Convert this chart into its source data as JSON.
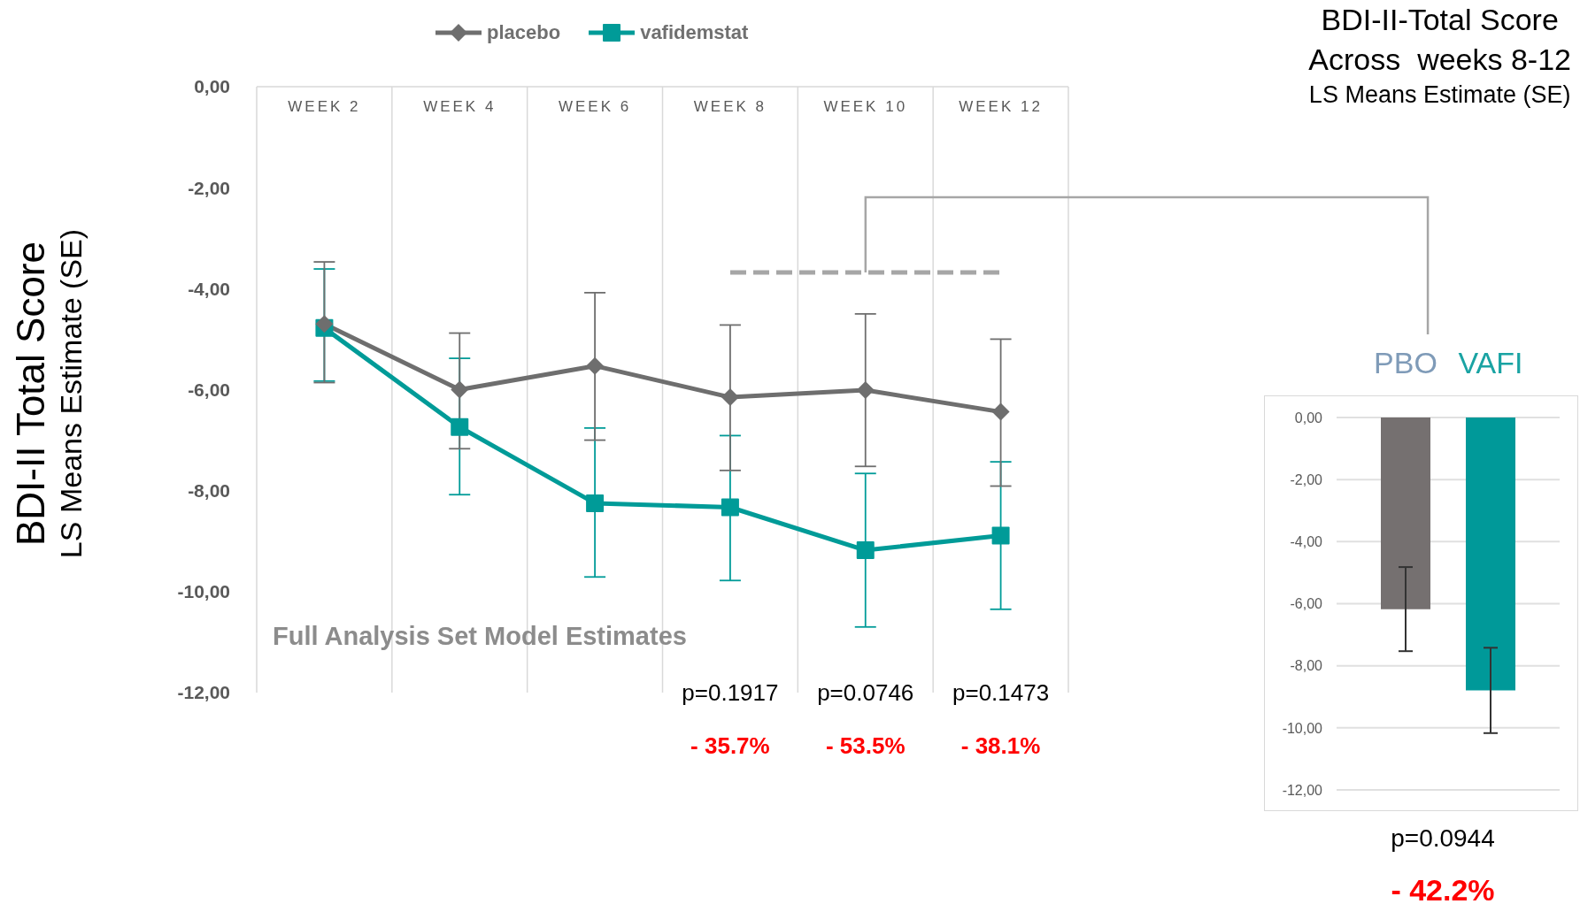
{
  "chart_data": [
    {
      "type": "line",
      "ylabel": "BDI-II Total Score\nLS Means Estimate (SE)",
      "categories": [
        "WEEK 2",
        "WEEK 4",
        "WEEK 6",
        "WEEK 8",
        "WEEK 10",
        "WEEK 12"
      ],
      "series": [
        {
          "name": "placebo",
          "color": "#6e6e6e",
          "marker": "diamond",
          "values": [
            -4.7,
            -6.0,
            -5.53,
            -6.15,
            -6.01,
            -6.44
          ],
          "errors": [
            [
              -5.86,
              -3.47
            ],
            [
              -7.17,
              -4.88
            ],
            [
              -7.0,
              -4.08
            ],
            [
              -7.6,
              -4.72
            ],
            [
              -7.52,
              -4.5
            ],
            [
              -7.91,
              -5.0
            ]
          ]
        },
        {
          "name": "vafidemstat",
          "color": "#009b98",
          "marker": "square",
          "values": [
            -4.78,
            -6.74,
            -8.25,
            -8.33,
            -9.18,
            -8.89
          ],
          "errors": [
            [
              -5.83,
              -3.61
            ],
            [
              -8.08,
              -5.38
            ],
            [
              -9.71,
              -6.76
            ],
            [
              -9.78,
              -6.91
            ],
            [
              -10.7,
              -7.66
            ],
            [
              -10.35,
              -7.43
            ]
          ]
        }
      ],
      "ylim": [
        -12,
        0
      ],
      "yticks": [
        {
          "value": 0,
          "label": "0,00"
        },
        {
          "value": -2,
          "label": "-2,00"
        },
        {
          "value": -4,
          "label": "-4,00"
        },
        {
          "value": -6,
          "label": "-6,00"
        },
        {
          "value": -8,
          "label": "-8,00"
        },
        {
          "value": -10,
          "label": "-10,00"
        },
        {
          "value": -12,
          "label": "-12,00"
        }
      ],
      "grid": "x",
      "legend": "top",
      "annotations": [
        "Full Analysis Set Model Estimates",
        "p=0.1917",
        "p=0.0746",
        "p=0.1473",
        "- 35.7%",
        "- 53.5%",
        "- 38.1%"
      ]
    },
    {
      "type": "bar",
      "title": "BDI-II-Total Score\nAcross  weeks 8-12",
      "subtitle": "LS Means Estimate (SE)",
      "categories": [
        "PBO",
        "VAFI"
      ],
      "values": [
        -6.18,
        -8.79
      ],
      "colors": [
        "#757070",
        "#009999"
      ],
      "errors": [
        [
          -7.53,
          -4.82
        ],
        [
          -10.17,
          -7.42
        ]
      ],
      "ylim": [
        -12,
        0
      ],
      "yticks": [
        {
          "value": 0,
          "label": "0,00"
        },
        {
          "value": -2,
          "label": "-2,00"
        },
        {
          "value": -4,
          "label": "-4,00"
        },
        {
          "value": -6,
          "label": "-6,00"
        },
        {
          "value": -8,
          "label": "-8,00"
        },
        {
          "value": -10,
          "label": "-10,00"
        },
        {
          "value": -12,
          "label": "-12,00"
        }
      ],
      "grid": "y",
      "annotations": [
        "p=0.0944",
        "- 42.2%"
      ]
    }
  ]
}
